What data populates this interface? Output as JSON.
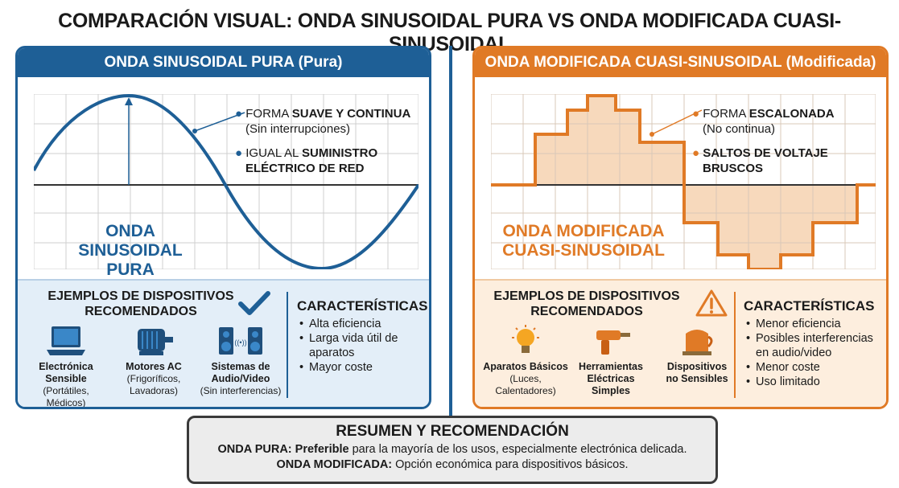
{
  "title": "COMPARACIÓN VISUAL: ONDA SINUSOIDAL PURA VS ONDA MODIFICADA CUASI-SINUSOIDAL",
  "left": {
    "header": "ONDA SINUSOIDAL PURA (Pura)",
    "annot1_pre": "FORMA ",
    "annot1_bold": "SUAVE Y CONTINUA",
    "annot1_sub": "(Sin interrupciones)",
    "annot2_pre": "IGUAL AL ",
    "annot2_bold1": "SUMINISTRO",
    "annot2_bold2": "ELÉCTRICO DE RED",
    "wave_label_1": "ONDA SINUSOIDAL",
    "wave_label_2": "PURA",
    "examples_title_1": "EJEMPLOS DE DISPOSITIVOS",
    "examples_title_2": "RECOMENDADOS",
    "devices": [
      {
        "name_1": "Electrónica",
        "name_2": "Sensible",
        "detail_1": "(Portátiles, Médicos)",
        "detail_2": "",
        "icon": "laptop-icon"
      },
      {
        "name_1": "Motores AC",
        "name_2": "",
        "detail_1": "(Frigoríficos,",
        "detail_2": "Lavadoras)",
        "icon": "motor-icon"
      },
      {
        "name_1": "Sistemas de",
        "name_2": "Audio/Video",
        "detail_1": "(Sin interferencias)",
        "detail_2": "",
        "icon": "speakers-icon"
      }
    ],
    "char_title": "CARACTERÍSTICAS",
    "chars": [
      "Alta eficiencia",
      "Larga vida útil de",
      "aparatos",
      "Mayor coste"
    ],
    "accent": "#1e5f96",
    "badge_icon": "checkmark-icon"
  },
  "right": {
    "header": "ONDA MODIFICADA CUASI-SINUSOIDAL (Modificada)",
    "annot1_pre": "FORMA ",
    "annot1_bold": "ESCALONADA",
    "annot1_sub": "(No continua)",
    "annot2_bold1": "SALTOS DE VOLTAJE",
    "annot2_bold2": "BRUSCOS",
    "wave_label_1": "ONDA MODIFICADA",
    "wave_label_2": "CUASI-SINUSOIDAL",
    "examples_title_1": "EJEMPLOS DE DISPOSITIVOS",
    "examples_title_2": "RECOMENDADOS",
    "devices": [
      {
        "name_1": "Aparatos Básicos",
        "name_2": "",
        "detail_1": "(Luces,",
        "detail_2": "Calentadores)",
        "icon": "lightbulb-icon"
      },
      {
        "name_1": "Herramientas",
        "name_2": "Eléctricas",
        "name_3": "Simples",
        "icon": "drill-icon"
      },
      {
        "name_1": "Dispositivos",
        "name_2": "no Sensibles",
        "icon": "kettle-icon"
      }
    ],
    "char_title": "CARACTERÍSTICAS",
    "chars": [
      "Menor eficiencia",
      "Posibles interferencias",
      "en audio/video",
      "Menor coste",
      "Uso limitado"
    ],
    "accent": "#e07a26",
    "badge_icon": "warning-icon"
  },
  "summary": {
    "title": "RESUMEN Y RECOMENDACIÓN",
    "line1_bold": "ONDA PURA:",
    "line1_bold2": " Preferible",
    "line1_rest": " para la mayoría de los usos, especialmente electrónica delicada.",
    "line2_bold": "ONDA MODIFICADA:",
    "line2_rest": " Opción económica para dispositivos básicos."
  }
}
